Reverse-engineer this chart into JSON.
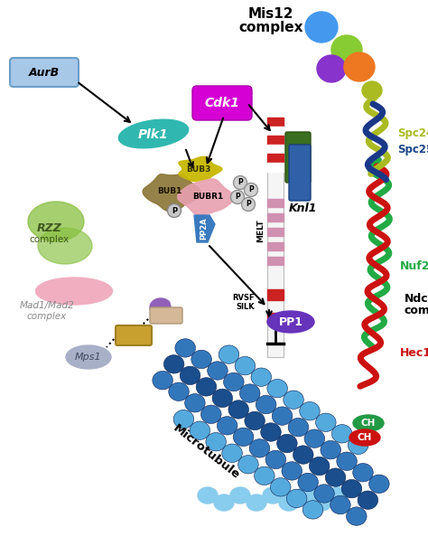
{
  "bg_color": "#ffffff",
  "figsize": [
    4.74,
    5.94
  ],
  "dpi": 100,
  "xlim": [
    0,
    474
  ],
  "ylim": [
    0,
    594
  ]
}
